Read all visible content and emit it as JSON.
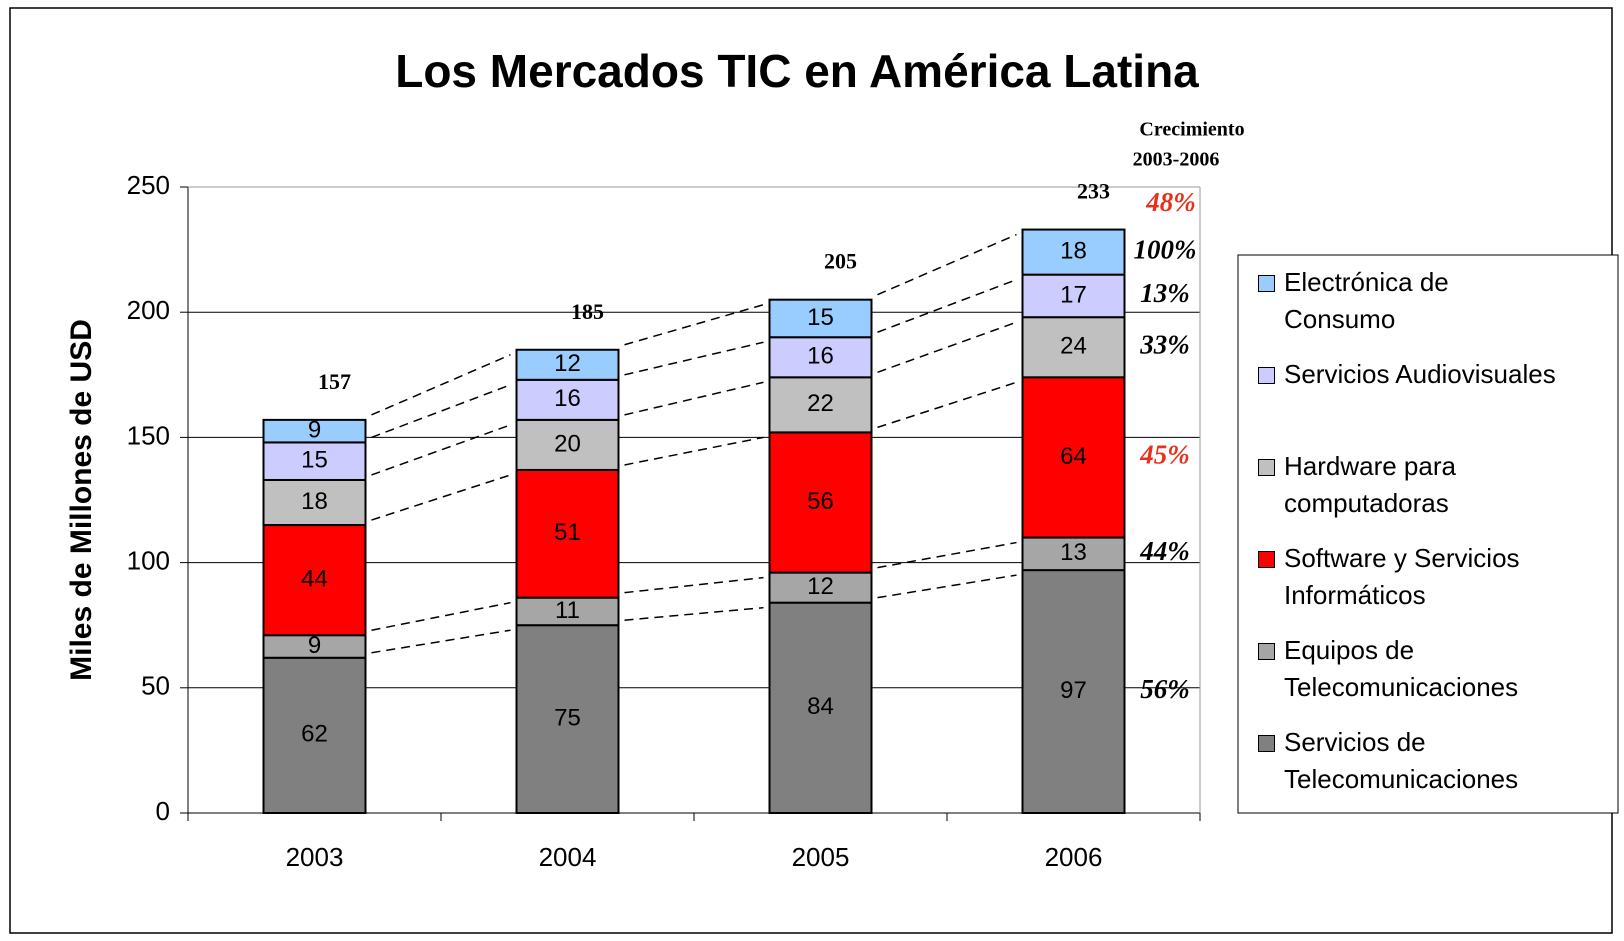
{
  "chart_data": {
    "type": "stacked_bar",
    "title": "Los Mercados TIC en América Latina",
    "y_label": "Miles de Millones de USD",
    "categories": [
      "2003",
      "2004",
      "2005",
      "2006"
    ],
    "series": [
      {
        "name": "Servicios de Telecomunicaciones",
        "color": "#808080",
        "values": [
          62,
          75,
          84,
          97
        ],
        "growth": "56%",
        "growth_color": "#000000"
      },
      {
        "name": "Equipos de Telecomunicaciones",
        "color": "#a6a6a6",
        "values": [
          9,
          11,
          12,
          13
        ],
        "growth": "44%",
        "growth_color": "#000000"
      },
      {
        "name": "Software y Servicios Informáticos",
        "color": "#ff0000",
        "values": [
          44,
          51,
          56,
          64
        ],
        "growth": "45%",
        "growth_color": "#e8301c"
      },
      {
        "name": "Hardware para computadoras",
        "color": "#c0c0c0",
        "values": [
          18,
          20,
          22,
          24
        ],
        "growth": "33%",
        "growth_color": "#000000"
      },
      {
        "name": "Servicios Audiovisuales",
        "color": "#ccccff",
        "values": [
          15,
          16,
          16,
          17
        ],
        "growth": "13%",
        "growth_color": "#000000"
      },
      {
        "name": "Electrónica de Consumo",
        "color": "#99ccff",
        "values": [
          9,
          12,
          15,
          18
        ],
        "growth": "100%",
        "growth_color": "#000000"
      }
    ],
    "totals": [
      157,
      185,
      205,
      233
    ],
    "growth_title": [
      "Crecimiento",
      "2003-2006"
    ],
    "total_growth": "48%",
    "total_growth_color": "#e8301c",
    "ylim": [
      0,
      250
    ],
    "yticks": [
      0,
      50,
      100,
      150,
      200,
      250
    ],
    "grid": true
  }
}
